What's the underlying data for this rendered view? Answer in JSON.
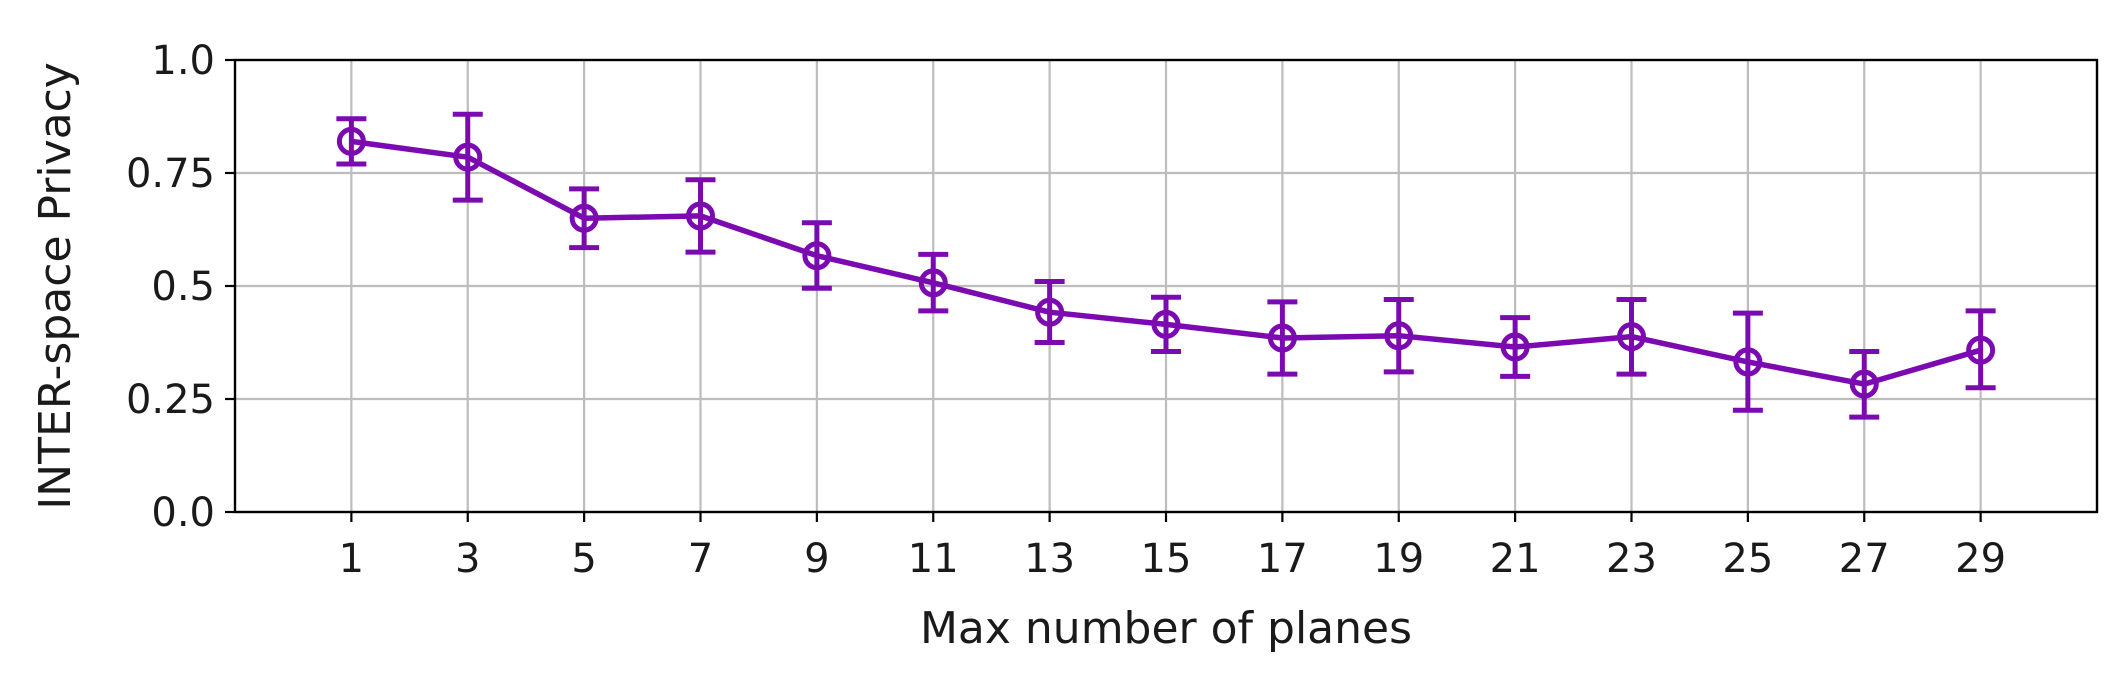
{
  "chart_data": {
    "type": "line",
    "title": "",
    "xlabel": "Max number of planes",
    "ylabel": "INTER-space Privacy",
    "x": [
      1,
      3,
      5,
      7,
      9,
      11,
      13,
      15,
      17,
      19,
      21,
      23,
      25,
      27,
      29
    ],
    "x_tick_labels": [
      "1",
      "3",
      "5",
      "7",
      "9",
      "11",
      "13",
      "15",
      "17",
      "19",
      "21",
      "23",
      "25",
      "27",
      "29"
    ],
    "xlim": [
      -1,
      31
    ],
    "ylim": [
      0,
      1
    ],
    "y_ticks": [
      0.0,
      0.25,
      0.5,
      0.75,
      1.0
    ],
    "y_tick_labels": [
      "0.0",
      "0.25",
      "0.5",
      "0.75",
      "1.0"
    ],
    "grid": true,
    "series": [
      {
        "color": "#7b0ab0",
        "marker": "open-circle",
        "values": [
          0.82,
          0.785,
          0.65,
          0.655,
          0.567,
          0.507,
          0.442,
          0.415,
          0.385,
          0.39,
          0.365,
          0.388,
          0.332,
          0.283,
          0.358
        ],
        "err_low": [
          0.77,
          0.69,
          0.585,
          0.575,
          0.495,
          0.445,
          0.375,
          0.355,
          0.305,
          0.31,
          0.3,
          0.305,
          0.225,
          0.21,
          0.275
        ],
        "err_high": [
          0.87,
          0.88,
          0.715,
          0.735,
          0.64,
          0.57,
          0.51,
          0.475,
          0.465,
          0.47,
          0.43,
          0.47,
          0.44,
          0.355,
          0.445
        ]
      }
    ]
  }
}
